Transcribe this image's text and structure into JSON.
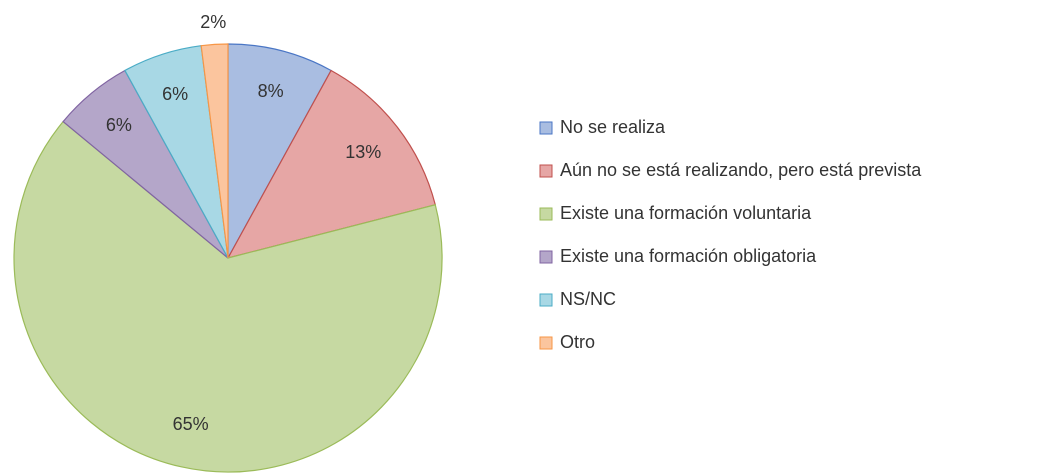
{
  "chart_data": {
    "type": "pie",
    "categories": [
      "No se realiza",
      "Aún no se está realizando, pero está prevista",
      "Existe una formación voluntaria",
      "Existe una formación obligatoria",
      "NS/NC",
      "Otro"
    ],
    "values": [
      8,
      13,
      65,
      6,
      6,
      2
    ],
    "value_labels": [
      "8%",
      "13%",
      "65%",
      "6%",
      "6%",
      "2%"
    ],
    "colors": [
      "#a9bde1",
      "#e6a6a5",
      "#c6d9a2",
      "#b4a6c9",
      "#a8d8e5",
      "#fbc59e"
    ],
    "edge_colors": [
      "#4a76c5",
      "#c0504d",
      "#9bbb59",
      "#8064a2",
      "#4bacc6",
      "#f79646"
    ],
    "legend": "right"
  }
}
